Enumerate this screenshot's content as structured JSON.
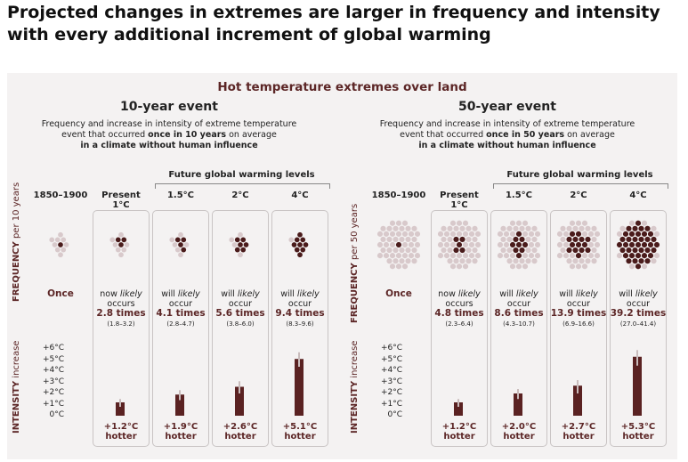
{
  "headline": "Projected changes in extremes are larger in frequency and intensity with every additional increment of global warming",
  "super_title": "Hot temperature extremes over land",
  "future_label": "Future global warming levels",
  "row_labels": {
    "frequency_10": {
      "main": "FREQUENCY",
      "sub": " per 10 years"
    },
    "frequency_50": {
      "main": "FREQUENCY",
      "sub": " per 50 years"
    },
    "intensity": {
      "main": "INTENSITY",
      "sub": " increase"
    }
  },
  "intensity_ticks": [
    "+6°C",
    "+5°C",
    "+4°C",
    "+3°C",
    "+2°C",
    "+1°C",
    "0°C"
  ],
  "colors": {
    "dot_dark": "#4a1b1b",
    "dot_light": "#d8c9cb",
    "bar": "#5a2222",
    "error": "#c9bcbc",
    "accent": "#5c2626"
  },
  "chart_data": [
    {
      "type": "bar",
      "title": "10-year event",
      "description": [
        "Frequency and increase in intensity of extreme temperature",
        "event that occurred ",
        "once in 10 years",
        " on average",
        "in a climate without human influence"
      ],
      "categories": [
        "1850–1900",
        "Present 1°C",
        "1.5°C",
        "2°C",
        "4°C"
      ],
      "frequency": [
        {
          "prefix": "",
          "likely": "",
          "verb": "",
          "value": "Once",
          "range": "",
          "dots_total": 10,
          "dots_dark": 1
        },
        {
          "prefix": "now ",
          "likely": "likely",
          "verb": "occurs",
          "value": "2.8 times",
          "range": "(1.8–3.2)",
          "dots_total": 10,
          "dots_dark": 3
        },
        {
          "prefix": "will ",
          "likely": "likely",
          "verb": "occur",
          "value": "4.1 times",
          "range": "(2.8–4.7)",
          "dots_total": 10,
          "dots_dark": 4
        },
        {
          "prefix": "will ",
          "likely": "likely",
          "verb": "occur",
          "value": "5.6 times",
          "range": "(3.8–6.0)",
          "dots_total": 10,
          "dots_dark": 6
        },
        {
          "prefix": "will ",
          "likely": "likely",
          "verb": "occur",
          "value": "9.4 times",
          "range": "(8.3–9.6)",
          "dots_total": 10,
          "dots_dark": 9
        }
      ],
      "intensity": [
        {
          "value": null,
          "low": null,
          "high": null,
          "label": "",
          "hotter": ""
        },
        {
          "value": 1.2,
          "low": 0.8,
          "high": 1.5,
          "label": "+1.2°C",
          "hotter": "hotter"
        },
        {
          "value": 1.9,
          "low": 1.4,
          "high": 2.3,
          "label": "+1.9°C",
          "hotter": "hotter"
        },
        {
          "value": 2.6,
          "low": 2.0,
          "high": 3.1,
          "label": "+2.6°C",
          "hotter": "hotter"
        },
        {
          "value": 5.1,
          "low": 4.4,
          "high": 5.7,
          "label": "+5.1°C",
          "hotter": "hotter"
        }
      ],
      "ylim": [
        0,
        6
      ]
    },
    {
      "type": "bar",
      "title": "50-year event",
      "description": [
        "Frequency and increase in intensity of extreme temperature",
        "event that occurred ",
        "once in 50 years",
        " on average",
        "in a climate without human influence"
      ],
      "categories": [
        "1850–1900",
        "Present 1°C",
        "1.5°C",
        "2°C",
        "4°C"
      ],
      "frequency": [
        {
          "prefix": "",
          "likely": "",
          "verb": "",
          "value": "Once",
          "range": "",
          "dots_total": 50,
          "dots_dark": 1
        },
        {
          "prefix": "now ",
          "likely": "likely",
          "verb": "occurs",
          "value": "4.8 times",
          "range": "(2.3–6.4)",
          "dots_total": 50,
          "dots_dark": 5
        },
        {
          "prefix": "will ",
          "likely": "likely",
          "verb": "occur",
          "value": "8.6 times",
          "range": "(4.3–10.7)",
          "dots_total": 50,
          "dots_dark": 9
        },
        {
          "prefix": "will ",
          "likely": "likely",
          "verb": "occur",
          "value": "13.9 times",
          "range": "(6.9–16.6)",
          "dots_total": 50,
          "dots_dark": 14
        },
        {
          "prefix": "will ",
          "likely": "likely",
          "verb": "occur",
          "value": "39.2 times",
          "range": "(27.0–41.4)",
          "dots_total": 50,
          "dots_dark": 39
        }
      ],
      "intensity": [
        {
          "value": null,
          "low": null,
          "high": null,
          "label": "",
          "hotter": ""
        },
        {
          "value": 1.2,
          "low": 0.8,
          "high": 1.5,
          "label": "+1.2°C",
          "hotter": "hotter"
        },
        {
          "value": 2.0,
          "low": 1.5,
          "high": 2.4,
          "label": "+2.0°C",
          "hotter": "hotter"
        },
        {
          "value": 2.7,
          "low": 2.0,
          "high": 3.2,
          "label": "+2.7°C",
          "hotter": "hotter"
        },
        {
          "value": 5.3,
          "low": 4.5,
          "high": 5.9,
          "label": "+5.3°C",
          "hotter": "hotter"
        }
      ],
      "ylim": [
        0,
        6
      ]
    }
  ]
}
